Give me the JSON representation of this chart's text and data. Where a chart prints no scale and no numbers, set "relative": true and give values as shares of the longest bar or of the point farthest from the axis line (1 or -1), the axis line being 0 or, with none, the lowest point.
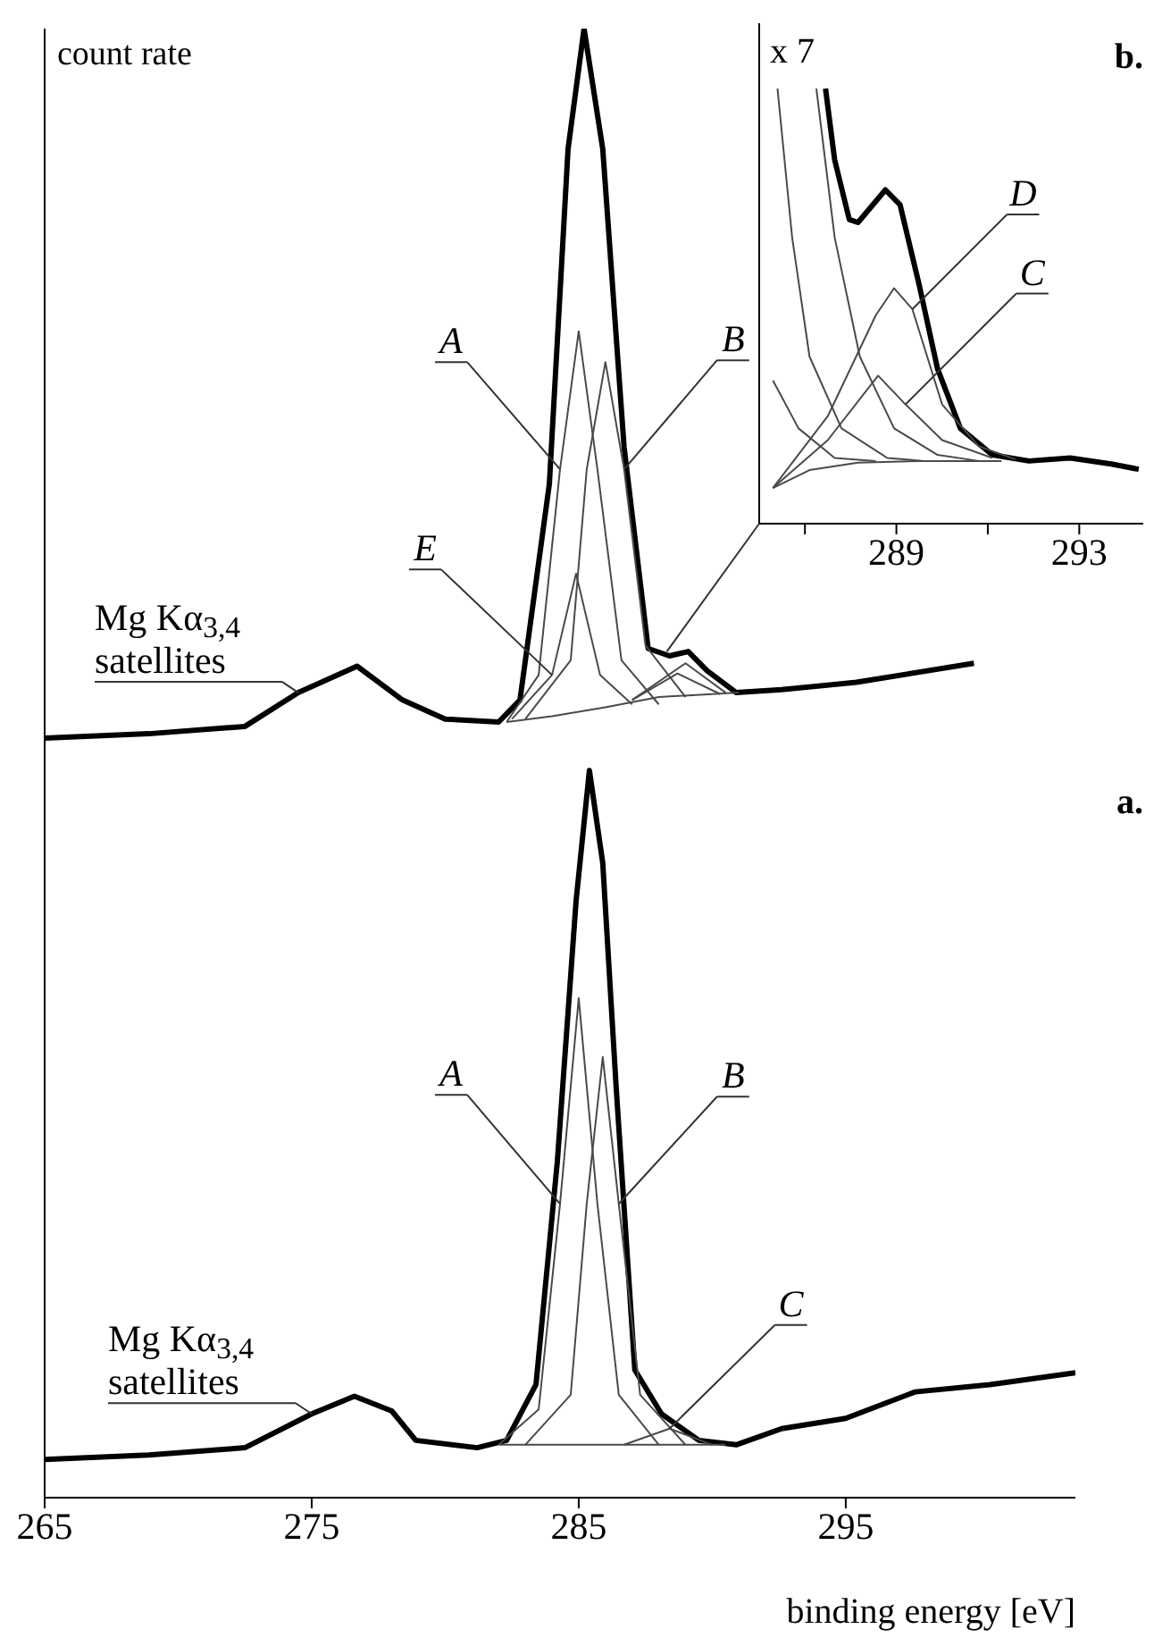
{
  "chart_data": [
    {
      "type": "line",
      "relative": true,
      "ylabel": "count rate",
      "xlabel": "binding energy [eV]",
      "xlim": [
        265,
        303.6
      ],
      "xticks": [
        265,
        275,
        285,
        295
      ],
      "grid": false,
      "marker": "none",
      "line_style": "solid",
      "annotations": [
        "A",
        "B",
        "E",
        "Mg Kα$_{3,4}$ satellites",
        "A",
        "B",
        "C",
        "Mg Kα$_{3,4}$ satellites",
        "b.",
        "a."
      ],
      "series": [
        {
          "color": "#000000",
          "x": [
            265,
            268.9,
            272.5,
            274.5,
            276.7,
            278.4,
            280,
            282,
            282.8,
            283.9,
            284.6,
            285.2,
            285.9,
            286.7,
            287.6,
            288.4,
            289.1,
            289.8,
            290.9,
            292.6,
            295.4,
            299.8
          ],
          "values": [
            0.517,
            0.52,
            0.525,
            0.548,
            0.566,
            0.543,
            0.53,
            0.528,
            0.543,
            0.69,
            0.918,
            1.0,
            0.918,
            0.715,
            0.578,
            0.573,
            0.576,
            0.563,
            0.548,
            0.55,
            0.555,
            0.568
          ]
        },
        {
          "color": "#000000",
          "x": [
            265,
            268.9,
            272.5,
            275,
            276.6,
            278,
            278.9,
            281.2,
            282.3,
            283.4,
            284.2,
            284.9,
            285.4,
            285.9,
            286.4,
            287.1,
            288.1,
            289.5,
            290.9,
            292.6,
            295,
            297.6,
            300.4,
            303.6
          ],
          "values": [
            0.026,
            0.029,
            0.034,
            0.057,
            0.069,
            0.059,
            0.039,
            0.034,
            0.039,
            0.077,
            0.229,
            0.406,
            0.495,
            0.432,
            0.28,
            0.087,
            0.057,
            0.039,
            0.036,
            0.047,
            0.054,
            0.072,
            0.077,
            0.085
          ]
        },
        {
          "color": "#4a4a4a",
          "x": [
            282.3,
            284,
            286,
            288,
            291
          ],
          "values": [
            0.528,
            0.532,
            0.538,
            0.545,
            0.548
          ]
        },
        {
          "color": "#4a4a4a",
          "x": [
            282.3,
            283.5,
            284.3,
            285,
            285.7,
            286.6,
            288
          ],
          "values": [
            0.528,
            0.56,
            0.7,
            0.794,
            0.7,
            0.57,
            0.54
          ]
        },
        {
          "color": "#4a4a4a",
          "x": [
            283,
            284.7,
            285.3,
            286,
            286.7,
            287.5,
            289
          ],
          "values": [
            0.53,
            0.57,
            0.7,
            0.773,
            0.7,
            0.58,
            0.545
          ]
        },
        {
          "color": "#4a4a4a",
          "x": [
            282.5,
            284,
            284.9,
            285.8,
            287
          ],
          "values": [
            0.53,
            0.56,
            0.629,
            0.56,
            0.54
          ]
        },
        {
          "color": "#4a4a4a",
          "x": [
            287,
            289,
            290.5
          ],
          "values": [
            0.543,
            0.568,
            0.548
          ]
        },
        {
          "color": "#4a4a4a",
          "x": [
            287,
            288.7,
            290.3
          ],
          "values": [
            0.543,
            0.561,
            0.547
          ]
        },
        {
          "color": "#4a4a4a",
          "x": [
            282,
            290.5
          ],
          "values": [
            0.036,
            0.036
          ]
        },
        {
          "color": "#4a4a4a",
          "x": [
            282,
            283.5,
            284.3,
            285,
            285.7,
            286.5,
            288
          ],
          "values": [
            0.036,
            0.06,
            0.2,
            0.34,
            0.2,
            0.07,
            0.036
          ]
        },
        {
          "color": "#4a4a4a",
          "x": [
            283,
            284.7,
            285.3,
            285.9,
            286.5,
            287.3,
            289
          ],
          "values": [
            0.036,
            0.07,
            0.2,
            0.3,
            0.2,
            0.07,
            0.036
          ]
        },
        {
          "color": "#4a4a4a",
          "x": [
            286.7,
            288.4,
            290
          ],
          "values": [
            0.036,
            0.047,
            0.036
          ]
        }
      ]
    },
    {
      "type": "line",
      "relative": true,
      "xlim": [
        286,
        294.4
      ],
      "xticks": [
        {
          "value": 287,
          "label": null
        },
        289,
        {
          "value": 291,
          "label": null
        },
        293
      ],
      "grid": false,
      "marker": "none",
      "line_style": "solid",
      "annotations": [
        "x 7",
        "D",
        "C"
      ],
      "series": [
        {
          "color": "#000000",
          "x": [
            287.45,
            287.65,
            287.97,
            288.16,
            288.76,
            289.08,
            289.5,
            289.9,
            290.4,
            291.1,
            291.9,
            292.8,
            293.7,
            294.3
          ],
          "values": [
            1.0,
            0.836,
            0.699,
            0.692,
            0.767,
            0.733,
            0.548,
            0.356,
            0.219,
            0.158,
            0.144,
            0.151,
            0.137,
            0.125
          ]
        },
        {
          "color": "#4a4a4a",
          "x": [
            286.4,
            286.72,
            287.1,
            287.8,
            288.8,
            289.6
          ],
          "values": [
            1.0,
            0.658,
            0.384,
            0.219,
            0.151,
            0.144
          ]
        },
        {
          "color": "#4a4a4a",
          "x": [
            287.25,
            287.65,
            288.2,
            288.95,
            289.9,
            290.8
          ],
          "values": [
            1.0,
            0.658,
            0.384,
            0.219,
            0.158,
            0.144
          ]
        },
        {
          "color": "#4a4a4a",
          "x": [
            286.3,
            286.86,
            287.65,
            288.55
          ],
          "values": [
            0.329,
            0.219,
            0.151,
            0.144
          ]
        },
        {
          "color": "#4a4a4a",
          "x": [
            286.3,
            287.5,
            288.55,
            288.95,
            289.35,
            290.0,
            290.8,
            291.6
          ],
          "values": [
            0.082,
            0.247,
            0.479,
            0.541,
            0.493,
            0.274,
            0.178,
            0.148
          ]
        },
        {
          "color": "#4a4a4a",
          "x": [
            286.3,
            287.5,
            288.6,
            289.2,
            290.0,
            291.1
          ],
          "values": [
            0.082,
            0.192,
            0.34,
            0.274,
            0.192,
            0.151
          ]
        },
        {
          "color": "#4a4a4a",
          "x": [
            286.3,
            287.1,
            288.16,
            289.5,
            291.3
          ],
          "values": [
            0.082,
            0.123,
            0.14,
            0.144,
            0.144
          ]
        }
      ]
    }
  ]
}
